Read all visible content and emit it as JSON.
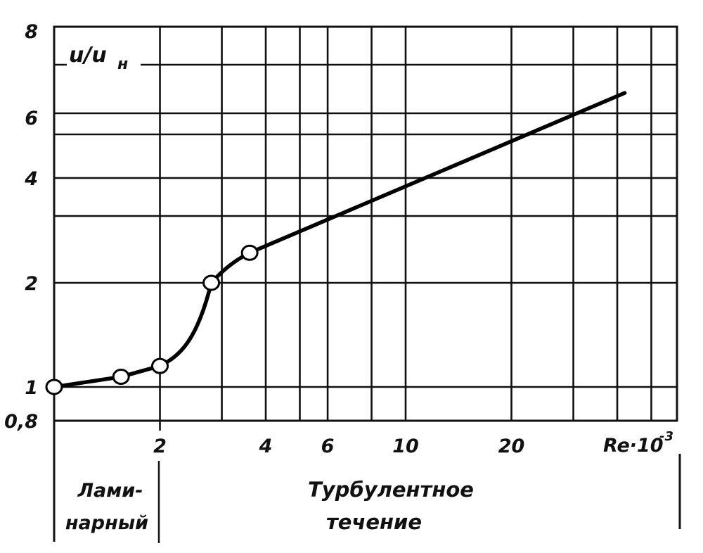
{
  "chart_data": {
    "type": "line",
    "title": "",
    "ylabel": "u/u",
    "ylabel_subscript": "н",
    "xlabel": "Re·10",
    "xlabel_superscript": "-3",
    "x_scale": "log",
    "y_scale": "log",
    "xlim": [
      1,
      60
    ],
    "ylim": [
      0.8,
      8
    ],
    "grid": true,
    "x_gridlines": [
      1,
      2,
      3,
      4,
      5,
      6,
      8,
      10,
      20,
      30,
      40,
      50,
      60
    ],
    "y_gridlines": [
      0.8,
      1,
      2,
      3,
      4,
      5,
      6,
      7,
      8
    ],
    "xticks": [
      {
        "value": 2,
        "label": "2"
      },
      {
        "value": 4,
        "label": "4"
      },
      {
        "value": 6,
        "label": "6"
      },
      {
        "value": 10,
        "label": "10"
      },
      {
        "value": 20,
        "label": "20"
      }
    ],
    "yticks": [
      {
        "value": 0.8,
        "label": "0,8"
      },
      {
        "value": 1,
        "label": "1"
      },
      {
        "value": 2,
        "label": "2"
      },
      {
        "value": 4,
        "label": "4"
      },
      {
        "value": 6,
        "label": "6"
      },
      {
        "value": 8,
        "label": "8"
      }
    ],
    "series": [
      {
        "markers": [
          {
            "x": 1.0,
            "y": 1.0
          },
          {
            "x": 1.55,
            "y": 1.07
          },
          {
            "x": 2.0,
            "y": 1.15
          },
          {
            "x": 2.8,
            "y": 2.0
          },
          {
            "x": 3.6,
            "y": 2.4
          }
        ],
        "line_end": {
          "x": 42,
          "y": 6.4
        }
      }
    ],
    "regions": [
      {
        "label_line1": "Лами-",
        "label_line2": "нарный",
        "from": 1,
        "to": 2
      },
      {
        "label_line1": "Турбулентное",
        "label_line2": "течение",
        "from": 2,
        "to": 60
      }
    ]
  }
}
